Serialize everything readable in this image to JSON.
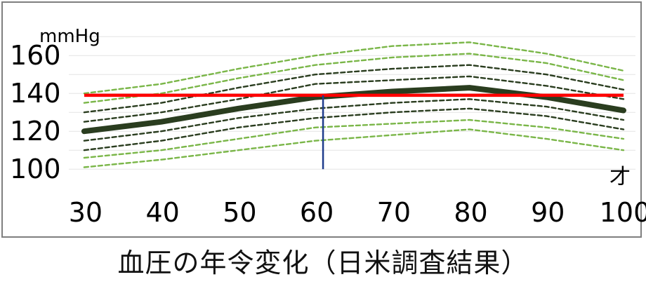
{
  "chart_data": {
    "type": "line",
    "ylabel": "mmHg",
    "xlabel": "才",
    "categories": [
      30,
      40,
      50,
      60,
      70,
      80,
      90,
      100
    ],
    "x_tick_labels": [
      "30",
      "40",
      "50",
      "60",
      "70",
      "80",
      "90",
      "100"
    ],
    "y_tick_labels": [
      "100",
      "120",
      "140",
      "160"
    ],
    "ylim": [
      96,
      176
    ],
    "grid": true,
    "reference_line": {
      "value": 139,
      "color": "#ff0000"
    },
    "marker_line": {
      "x": 61,
      "y_from": 100,
      "y_to": 139,
      "color": "#1f3d8c"
    },
    "series": [
      {
        "values": [
          120,
          125,
          132,
          138,
          141,
          143,
          138,
          131
        ],
        "style": "solid",
        "color": "#2a3d1f"
      },
      {
        "values": [
          140,
          145,
          153,
          160,
          165,
          167,
          161,
          152
        ],
        "style": "dashed",
        "color": "#7ab648"
      },
      {
        "values": [
          135,
          140,
          148,
          155,
          159,
          161,
          156,
          147
        ],
        "style": "dashed",
        "color": "#7ab648"
      },
      {
        "values": [
          130,
          135,
          143,
          150,
          153,
          155,
          150,
          142
        ],
        "style": "dashed",
        "color": "#2a3d1f"
      },
      {
        "values": [
          125,
          130,
          137,
          145,
          147,
          149,
          144,
          137
        ],
        "style": "dashed",
        "color": "#2a3d1f"
      },
      {
        "values": [
          115,
          120,
          127,
          132,
          135,
          137,
          133,
          126
        ],
        "style": "dashed",
        "color": "#2a3d1f"
      },
      {
        "values": [
          110,
          115,
          122,
          127,
          130,
          132,
          128,
          121
        ],
        "style": "dashed",
        "color": "#2a3d1f"
      },
      {
        "values": [
          106,
          110,
          116,
          122,
          124,
          126,
          122,
          116
        ],
        "style": "dashed",
        "color": "#7ab648"
      },
      {
        "values": [
          101,
          105,
          110,
          115,
          118,
          121,
          116,
          110
        ],
        "style": "dashed",
        "color": "#7ab648"
      }
    ]
  },
  "caption": "血圧の年令変化（日米調査結果）"
}
